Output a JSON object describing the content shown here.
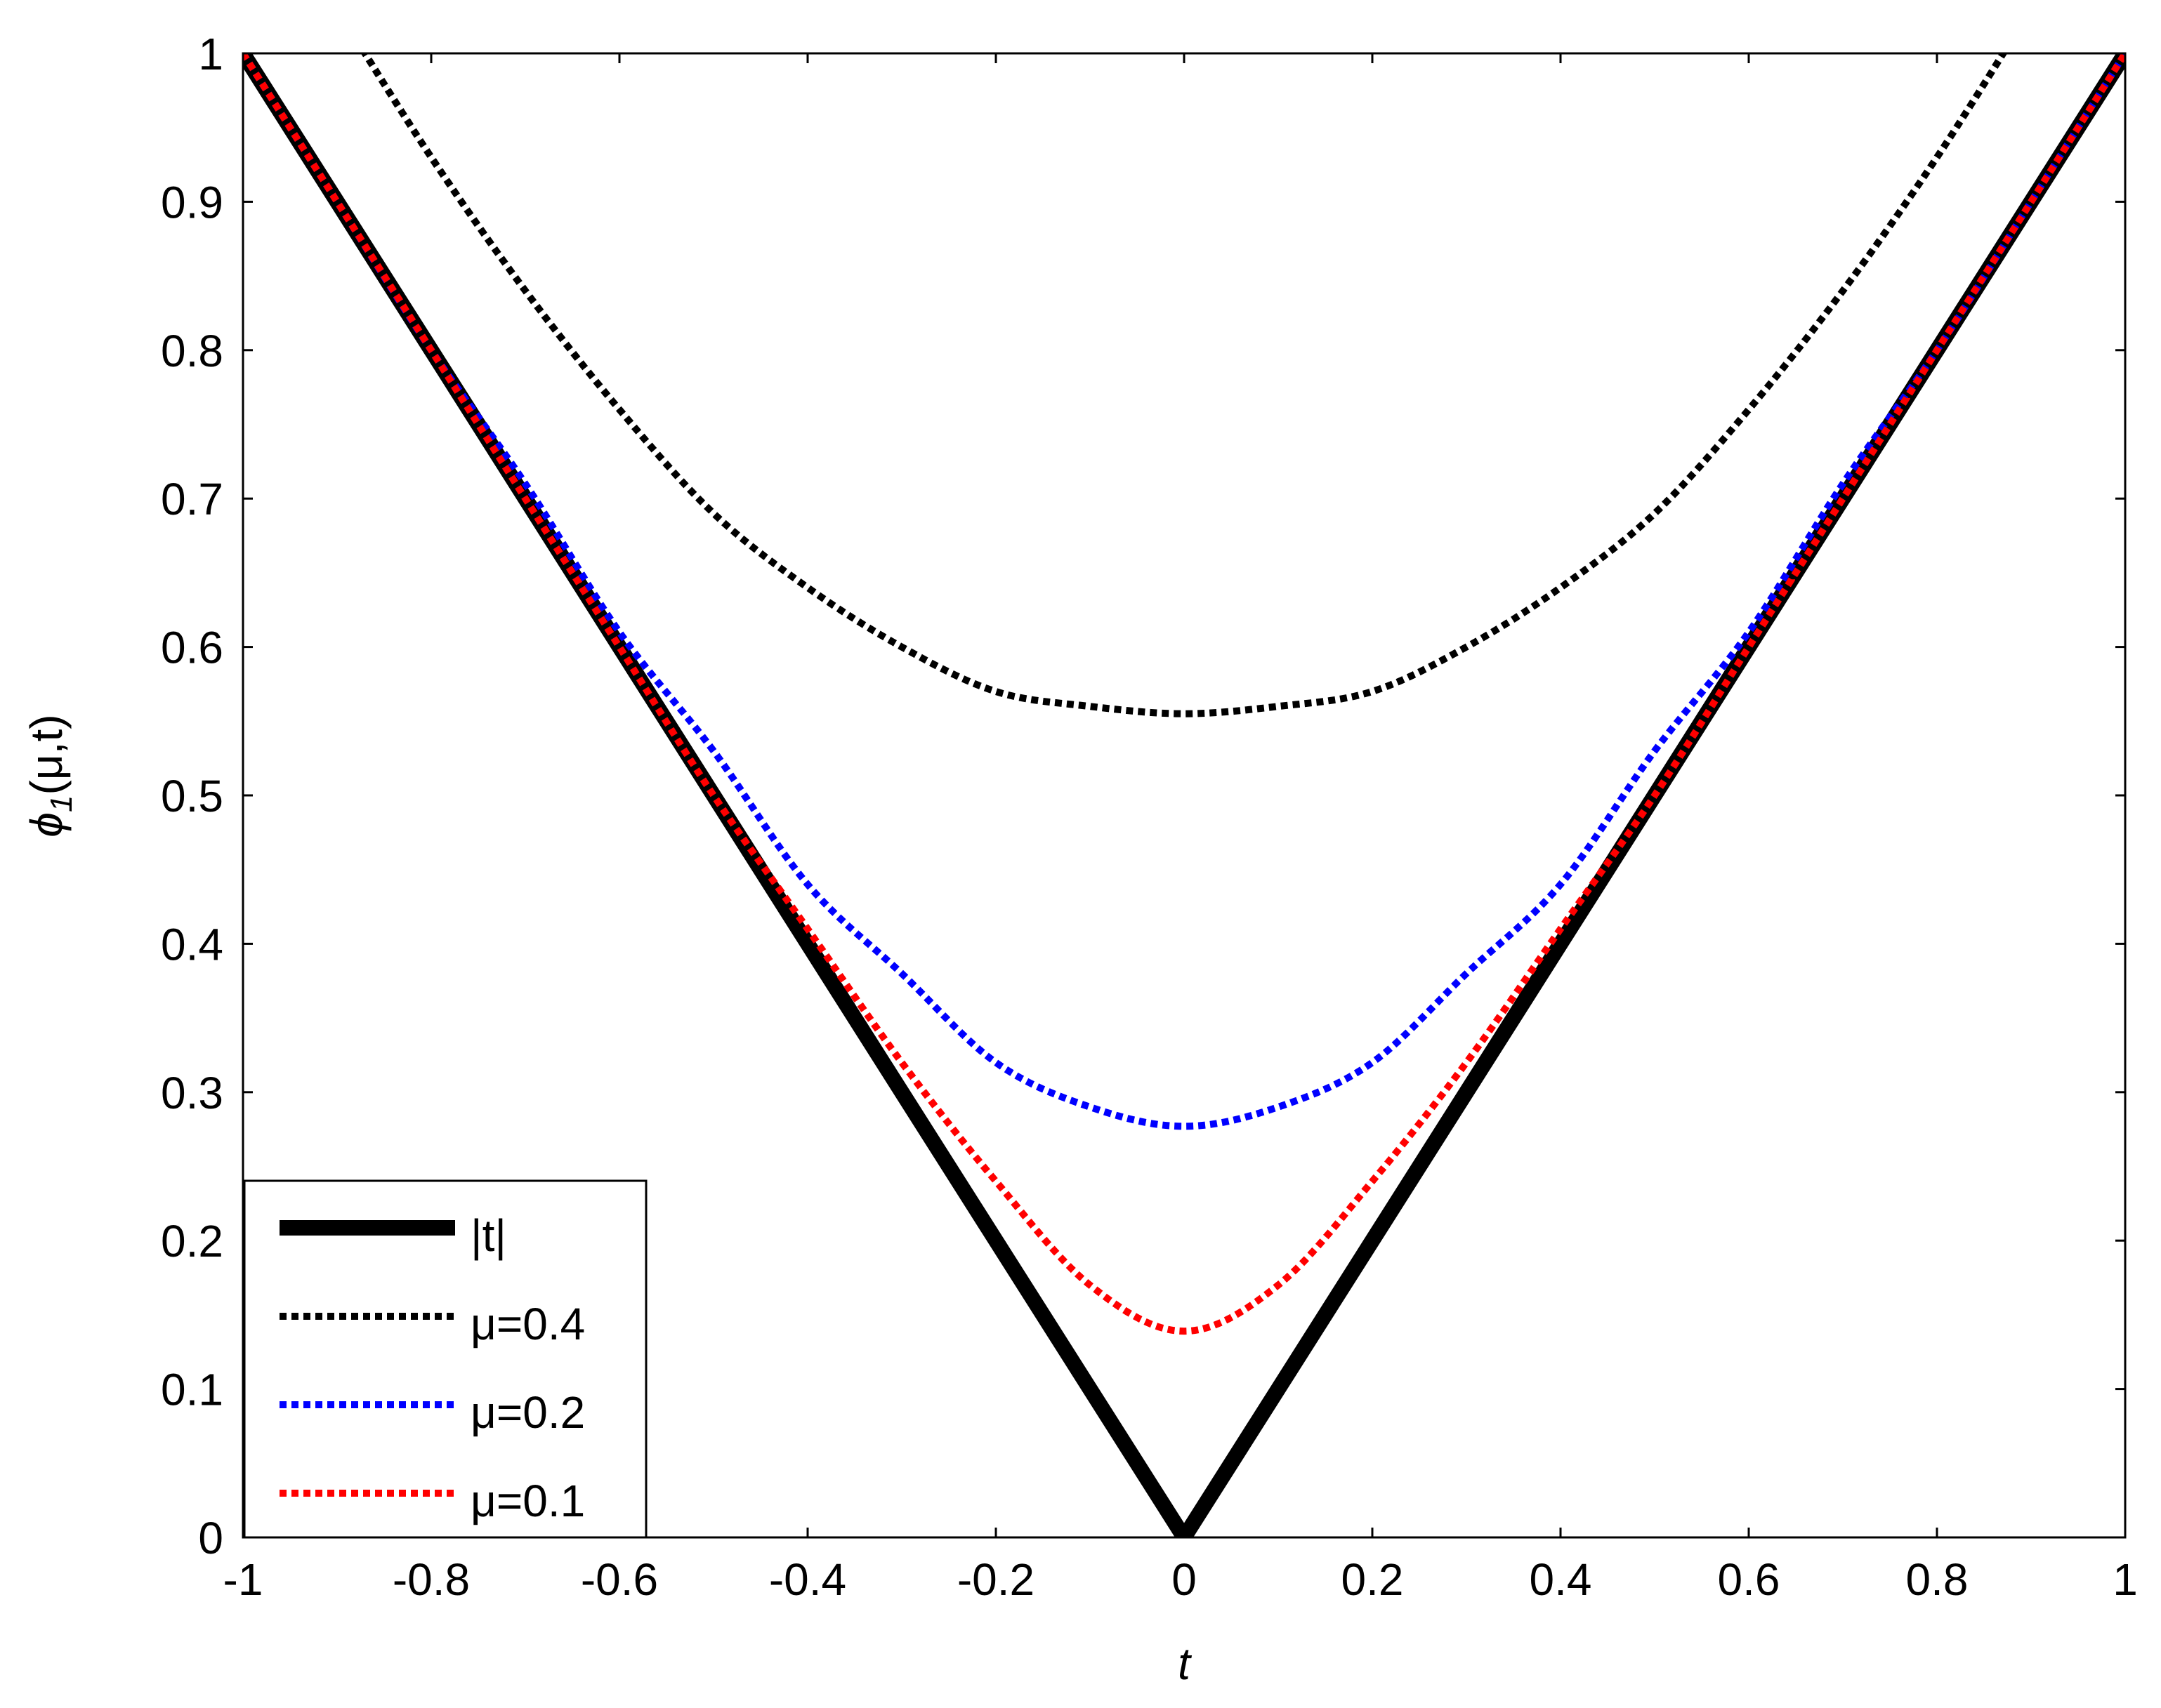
{
  "chart_data": {
    "type": "line",
    "xlabel": "t",
    "ylabel": {
      "symbol": "ϕ",
      "subscript": "1",
      "args": "(μ,t)"
    },
    "xlim": [
      -1,
      1
    ],
    "ylim": [
      0,
      1
    ],
    "xticks": [
      "-1",
      "-0.8",
      "-0.6",
      "-0.4",
      "-0.2",
      "0",
      "0.2",
      "0.4",
      "0.6",
      "0.8",
      "1"
    ],
    "xtick_values": [
      -1,
      -0.8,
      -0.6,
      -0.4,
      -0.2,
      0,
      0.2,
      0.4,
      0.6,
      0.8,
      1
    ],
    "yticks": [
      "0",
      "0.1",
      "0.2",
      "0.3",
      "0.4",
      "0.5",
      "0.6",
      "0.7",
      "0.8",
      "0.9",
      "1"
    ],
    "ytick_values": [
      0,
      0.1,
      0.2,
      0.3,
      0.4,
      0.5,
      0.6,
      0.7,
      0.8,
      0.9,
      1
    ],
    "grid": false,
    "legend_position": "bottom-left",
    "x": [
      -1,
      -0.9,
      -0.8,
      -0.7,
      -0.6,
      -0.5,
      -0.4,
      -0.3,
      -0.2,
      -0.1,
      0,
      0.1,
      0.2,
      0.3,
      0.4,
      0.5,
      0.6,
      0.7,
      0.8,
      0.9,
      1
    ],
    "series": [
      {
        "name": "|t|",
        "color": "#000000",
        "style": "solid",
        "values": [
          1,
          0.9,
          0.8,
          0.7,
          0.6,
          0.5,
          0.4,
          0.3,
          0.2,
          0.1,
          0,
          0.1,
          0.2,
          0.3,
          0.4,
          0.5,
          0.6,
          0.7,
          0.8,
          0.9,
          1
        ]
      },
      {
        "name": "μ=0.4",
        "color": "#000000",
        "style": "dotted",
        "values": [
          null,
          1.03,
          0.93,
          0.84,
          0.76,
          0.69,
          0.64,
          0.6,
          0.57,
          0.56,
          0.555,
          0.56,
          0.57,
          0.6,
          0.64,
          0.69,
          0.76,
          0.84,
          0.93,
          1.03,
          null
        ]
      },
      {
        "name": "μ=0.2",
        "color": "#0000ff",
        "style": "dotted",
        "values": [
          1,
          0.9,
          0.8,
          0.71,
          0.61,
          0.53,
          0.44,
          0.38,
          0.32,
          0.29,
          0.277,
          0.29,
          0.32,
          0.38,
          0.44,
          0.53,
          0.61,
          0.71,
          0.8,
          0.9,
          1
        ]
      },
      {
        "name": "μ=0.1",
        "color": "#ff0000",
        "style": "dotted",
        "values": [
          1,
          0.9,
          0.8,
          0.7,
          0.6,
          0.5,
          0.41,
          0.32,
          0.24,
          0.17,
          0.139,
          0.17,
          0.24,
          0.32,
          0.41,
          0.5,
          0.6,
          0.7,
          0.8,
          0.9,
          1
        ]
      }
    ]
  }
}
